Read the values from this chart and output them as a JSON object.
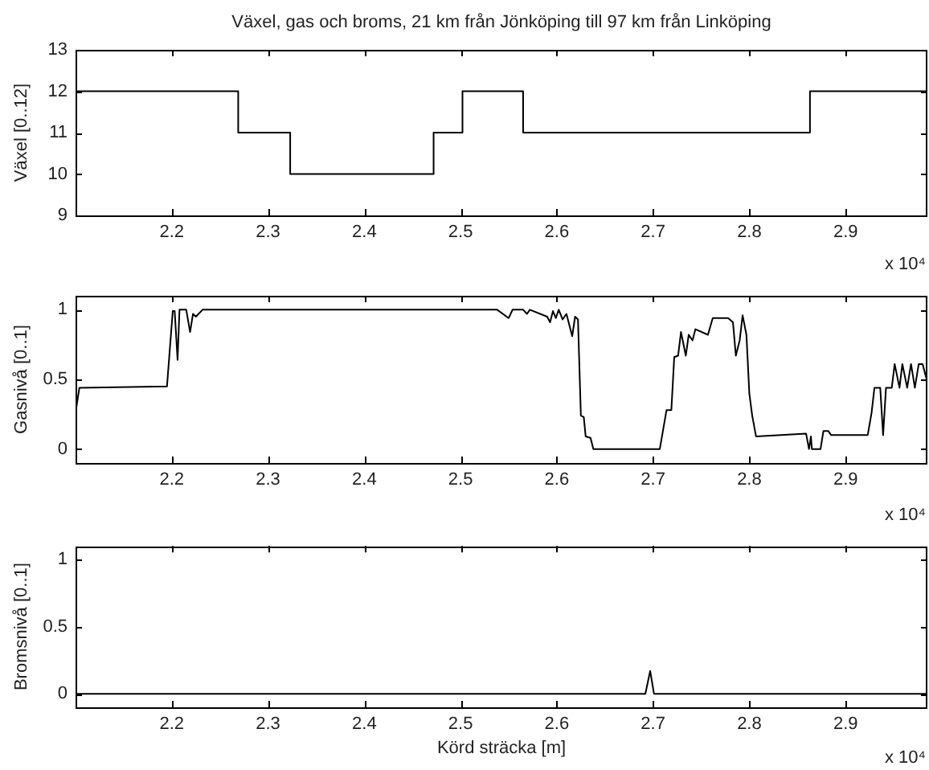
{
  "chart_data": [
    {
      "type": "step",
      "title": "Växel, gas och broms, 21 km från Jönköping till 97 km från Linköping",
      "ylabel": "Växel [0..12]",
      "annotations": [
        "x 10⁴"
      ],
      "x": [
        2.1,
        2.269,
        2.323,
        2.472,
        2.502,
        2.565,
        2.863,
        2.985
      ],
      "series": [
        {
          "color": "#000000",
          "values": [
            12,
            11,
            10,
            11,
            12,
            11,
            12,
            12
          ]
        }
      ],
      "xlim": [
        2.1,
        2.985
      ],
      "xticks": [
        2.2,
        2.3,
        2.4,
        2.5,
        2.6,
        2.7,
        2.8,
        2.9
      ],
      "ylim": [
        9,
        13
      ],
      "yticks": [
        9,
        10,
        11,
        12,
        13
      ]
    },
    {
      "type": "line",
      "ylabel": "Gasnivå [0..1]",
      "annotations": [
        "x 10⁴"
      ],
      "x": [
        2.1,
        2.104,
        2.195,
        2.201,
        2.203,
        2.206,
        2.208,
        2.215,
        2.219,
        2.222,
        2.225,
        2.232,
        2.538,
        2.55,
        2.554,
        2.565,
        2.569,
        2.572,
        2.59,
        2.593,
        2.596,
        2.599,
        2.602,
        2.606,
        2.61,
        2.616,
        2.619,
        2.622,
        2.625,
        2.628,
        2.63,
        2.635,
        2.638,
        2.707,
        2.714,
        2.719,
        2.722,
        2.726,
        2.729,
        2.734,
        2.737,
        2.741,
        2.744,
        2.757,
        2.762,
        2.778,
        2.783,
        2.786,
        2.79,
        2.793,
        2.797,
        2.8,
        2.803,
        2.807,
        2.859,
        2.862,
        2.864,
        2.865,
        2.874,
        2.877,
        2.882,
        2.885,
        2.923,
        2.927,
        2.93,
        2.936,
        2.939,
        2.942,
        2.948,
        2.951,
        2.956,
        2.959,
        2.964,
        2.968,
        2.972,
        2.976,
        2.98,
        2.985
      ],
      "series": [
        {
          "color": "#000000",
          "values": [
            0.26,
            0.44,
            0.45,
            0.99,
            0.99,
            0.64,
            1.0,
            1.0,
            0.84,
            0.97,
            0.95,
            1.0,
            1.0,
            0.94,
            1.0,
            1.0,
            0.97,
            1.0,
            0.95,
            0.91,
            0.99,
            0.94,
            1.0,
            0.93,
            0.97,
            0.81,
            0.95,
            0.93,
            0.24,
            0.23,
            0.09,
            0.08,
            0,
            0,
            0.28,
            0.28,
            0.66,
            0.67,
            0.84,
            0.67,
            0.82,
            0.78,
            0.86,
            0.82,
            0.94,
            0.94,
            0.91,
            0.67,
            0.78,
            0.96,
            0.82,
            0.4,
            0.24,
            0.09,
            0.11,
            0,
            0.09,
            0,
            0,
            0.13,
            0.13,
            0.1,
            0.1,
            0.26,
            0.44,
            0.44,
            0.1,
            0.44,
            0.44,
            0.61,
            0.44,
            0.61,
            0.44,
            0.61,
            0.44,
            0.61,
            0.61,
            0.48
          ]
        }
      ],
      "xlim": [
        2.1,
        2.985
      ],
      "xticks": [
        2.2,
        2.3,
        2.4,
        2.5,
        2.6,
        2.7,
        2.8,
        2.9
      ],
      "ylim": [
        -0.1,
        1.1
      ],
      "yticks": [
        0,
        0.5,
        1
      ]
    },
    {
      "type": "line",
      "xlabel": "Körd sträcka [m]",
      "ylabel": "Bromsnivå [0..1]",
      "annotations": [
        "x 10⁴"
      ],
      "x": [
        2.1,
        2.692,
        2.697,
        2.701,
        2.985
      ],
      "series": [
        {
          "color": "#000000",
          "values": [
            0,
            0,
            0.17,
            0,
            0
          ]
        }
      ],
      "xlim": [
        2.1,
        2.985
      ],
      "xticks": [
        2.2,
        2.3,
        2.4,
        2.5,
        2.6,
        2.7,
        2.8,
        2.9
      ],
      "ylim": [
        -0.1,
        1.1
      ],
      "yticks": [
        0,
        0.5,
        1
      ]
    }
  ]
}
